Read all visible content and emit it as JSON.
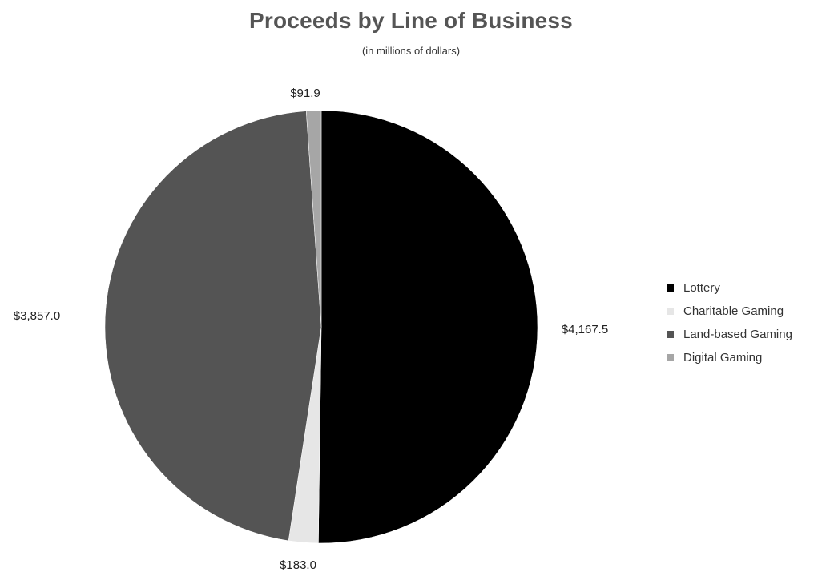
{
  "chart_data": {
    "type": "pie",
    "title": "Proceeds by Line of Business",
    "subtitle": "(in millions of dollars)",
    "legend_position": "right",
    "slices": [
      {
        "name": "Lottery",
        "value": 4167.5,
        "label": "$4,167.5",
        "color": "#000000"
      },
      {
        "name": "Charitable Gaming",
        "value": 183.0,
        "label": "$183.0",
        "color": "#e6e6e6"
      },
      {
        "name": "Land-based Gaming",
        "value": 3857.0,
        "label": "$3,857.0",
        "color": "#545454"
      },
      {
        "name": "Digital Gaming",
        "value": 91.9,
        "label": "$91.9",
        "color": "#a6a6a6"
      }
    ]
  }
}
